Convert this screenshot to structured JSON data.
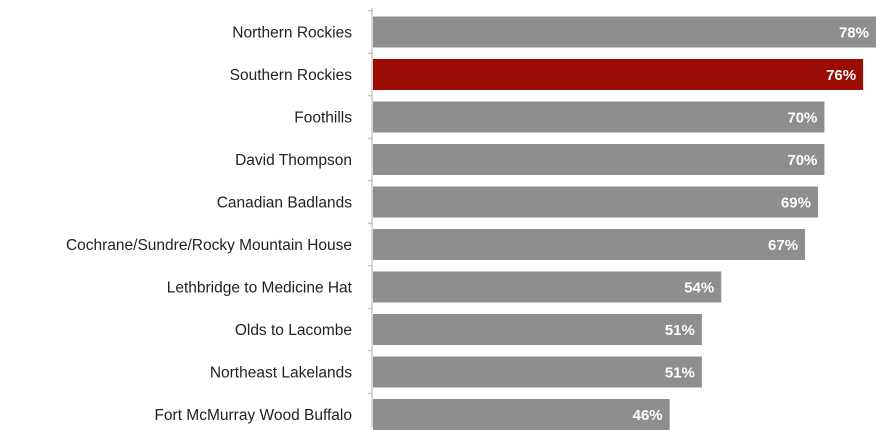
{
  "chart_data": {
    "type": "bar",
    "orientation": "horizontal",
    "categories": [
      "Northern Rockies",
      "Southern Rockies",
      "Foothills",
      "David Thompson",
      "Canadian Badlands",
      "Cochrane/Sundre/Rocky Mountain House",
      "Lethbridge to Medicine Hat",
      "Olds to Lacombe",
      "Northeast Lakelands",
      "Fort McMurray Wood Buffalo"
    ],
    "values": [
      78,
      76,
      70,
      70,
      69,
      67,
      54,
      51,
      51,
      46
    ],
    "value_labels": [
      "78%",
      "76%",
      "70%",
      "70%",
      "69%",
      "67%",
      "54%",
      "51%",
      "51%",
      "46%"
    ],
    "unit": "%",
    "highlight_index": 1,
    "xlim": [
      0,
      78
    ],
    "grid": false,
    "legend": "none",
    "colors": {
      "bar": "#8f8d90",
      "highlight": "#9b0c04",
      "label_text": "#222222",
      "value_text": "#ffffff",
      "axis": "#b0b0b0"
    }
  }
}
